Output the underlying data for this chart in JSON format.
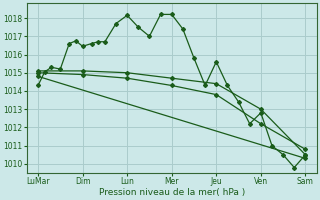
{
  "bg_color": "#cce8e8",
  "grid_color": "#aacccc",
  "line_color": "#1a5c1a",
  "xlabel": "Pression niveau de la mer( hPa )",
  "ylim": [
    1009.5,
    1018.8
  ],
  "xtick_labels": [
    "LuMar",
    "Dim",
    "Lun",
    "Mer",
    "Jeu",
    "Ven",
    "Sam"
  ],
  "xtick_positions": [
    0,
    2,
    4,
    6,
    8,
    10,
    12
  ],
  "series1_x": [
    0.0,
    0.3,
    0.6,
    1.0,
    1.4,
    1.7,
    2.0,
    2.4,
    2.7,
    3.0,
    3.5,
    4.0,
    4.5,
    5.0,
    5.5,
    6.0,
    6.5,
    7.0,
    7.5,
    8.0,
    8.5,
    9.0,
    9.5,
    10.0,
    10.5,
    11.0,
    11.5,
    12.0
  ],
  "series1_y": [
    1014.3,
    1015.05,
    1015.3,
    1015.2,
    1016.6,
    1016.75,
    1016.45,
    1016.6,
    1016.7,
    1016.7,
    1017.7,
    1018.15,
    1017.5,
    1017.0,
    1018.2,
    1018.2,
    1017.4,
    1015.8,
    1014.3,
    1015.6,
    1014.3,
    1013.4,
    1012.2,
    1012.8,
    1011.0,
    1010.5,
    1009.8,
    1010.5
  ],
  "series2_x": [
    0.0,
    2.0,
    4.0,
    6.0,
    8.0,
    10.0,
    12.0
  ],
  "series2_y": [
    1015.1,
    1015.1,
    1015.0,
    1014.7,
    1014.4,
    1013.0,
    1010.5
  ],
  "series3_x": [
    0.0,
    2.0,
    4.0,
    6.0,
    8.0,
    10.0,
    12.0
  ],
  "series3_y": [
    1015.0,
    1014.9,
    1014.7,
    1014.3,
    1013.8,
    1012.2,
    1010.8
  ],
  "series4_x": [
    0.0,
    12.0
  ],
  "series4_y": [
    1014.8,
    1010.3
  ]
}
